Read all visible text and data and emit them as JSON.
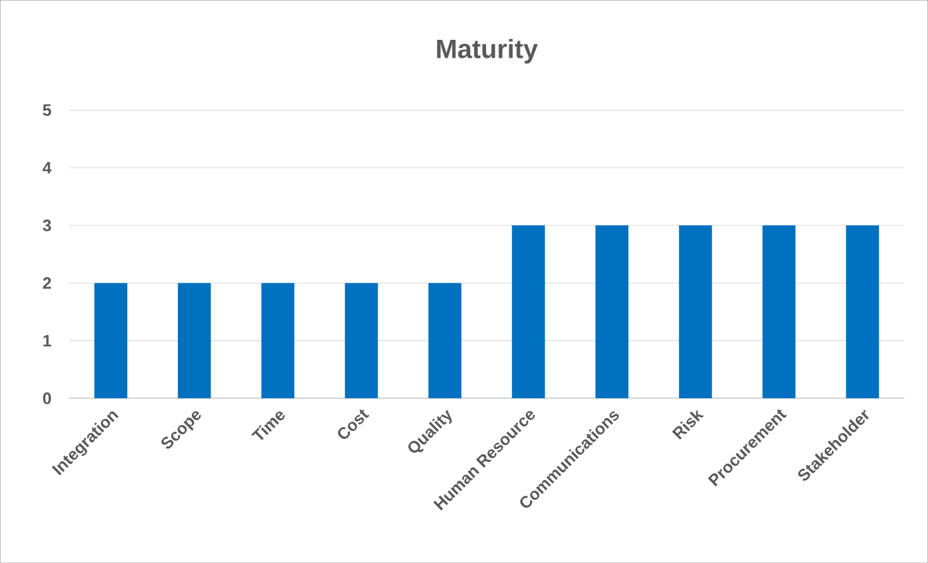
{
  "chart_data": {
    "type": "bar",
    "title": "Maturity",
    "categories": [
      "Integration",
      "Scope",
      "Time",
      "Cost",
      "Quality",
      "Human Resource",
      "Communications",
      "Risk",
      "Procurement",
      "Stakeholder"
    ],
    "values": [
      2,
      2,
      2,
      2,
      2,
      3,
      3,
      3,
      3,
      3
    ],
    "color": "#0070c0",
    "ylim": [
      0,
      5
    ],
    "yticks": [
      0,
      1,
      2,
      3,
      4,
      5
    ],
    "grid": "y"
  }
}
